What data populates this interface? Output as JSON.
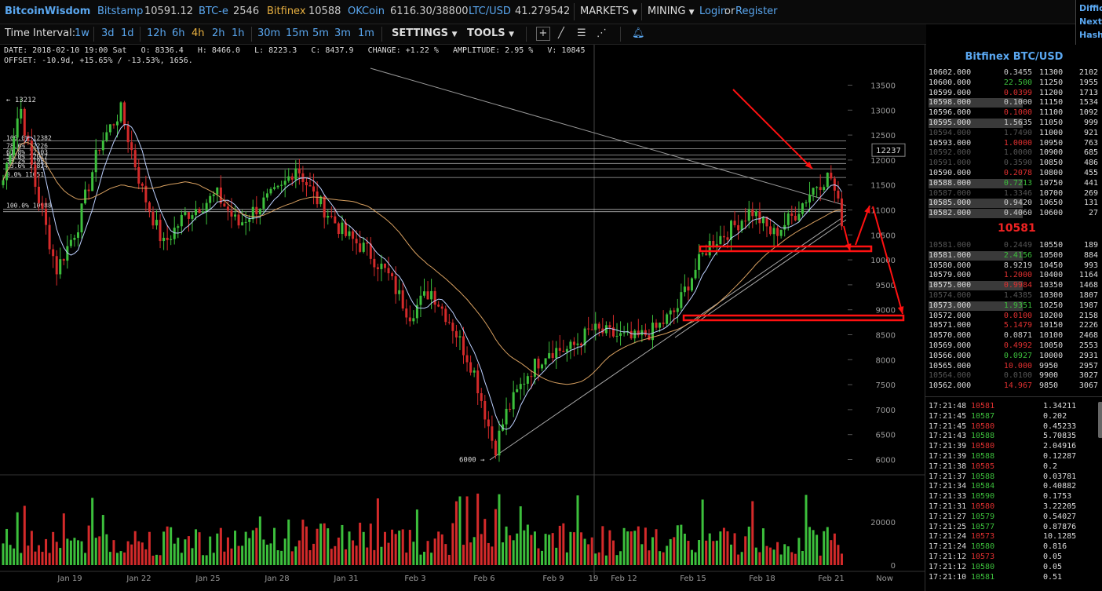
{
  "header": {
    "brand": "BitcoinWisdom",
    "exchanges": [
      {
        "name": "Bitstamp",
        "value": "10591.12",
        "active": false
      },
      {
        "name": "BTC-e",
        "value": "2546",
        "active": false
      },
      {
        "name": "Bitfinex",
        "value": "10588",
        "active": true
      },
      {
        "name": "OKCoin",
        "value": "6116.30/38800",
        "active": false
      },
      {
        "name": "LTC/USD",
        "value": "41.279542",
        "active": false
      }
    ],
    "markets_label": "MARKETS",
    "mining_label": "MINING",
    "login_label": "Login",
    "or_label": "or",
    "register_label": "Register",
    "side_labels": [
      "Diffic",
      "Next:",
      "Hash"
    ]
  },
  "toolbar": {
    "time_interval_label": "Time Interval:",
    "intervals": [
      "1w",
      "3d",
      "1d",
      "12h",
      "6h",
      "4h",
      "2h",
      "1h",
      "30m",
      "15m",
      "5m",
      "3m",
      "1m"
    ],
    "active_interval": "4h",
    "settings_label": "SETTINGS",
    "tools_label": "TOOLS"
  },
  "info": {
    "line1": "DATE: 2018-02-10 19:00 Sat   O: 8336.4   H: 8466.0   L: 8223.3   C: 8437.9   CHANGE: +1.22 %   AMPLITUDE: 2.95 %   V: 10845",
    "line2": "OFFSET: -10.9d, +15.65% / -13.53%, 1656."
  },
  "chart_data": {
    "type": "candlestick",
    "title": "",
    "interval": "4h",
    "y_ticks": [
      13500,
      13000,
      12500,
      12000,
      11500,
      11000,
      10500,
      10000,
      9500,
      9000,
      8500,
      8000,
      7500,
      7000,
      6500,
      6000
    ],
    "ylim": [
      5800,
      13900
    ],
    "x_ticks": [
      "Jan 19",
      "Jan 22",
      "Jan 25",
      "Jan 28",
      "Jan 31",
      "Feb 3",
      "Feb 6",
      "Feb 9",
      "19",
      "Feb 12",
      "Feb 15",
      "Feb 18",
      "Feb 21",
      "Now"
    ],
    "volume_ticks": [
      "20000",
      "0"
    ],
    "price_path": [
      {
        "d": 0,
        "p": 11600
      },
      {
        "d": 0.8,
        "p": 13100
      },
      {
        "d": 1.5,
        "p": 11500
      },
      {
        "d": 2.5,
        "p": 9800
      },
      {
        "d": 3.5,
        "p": 10700
      },
      {
        "d": 4.5,
        "p": 12300
      },
      {
        "d": 5.5,
        "p": 13000
      },
      {
        "d": 6.5,
        "p": 11400
      },
      {
        "d": 7.5,
        "p": 10300
      },
      {
        "d": 8.5,
        "p": 10900
      },
      {
        "d": 10,
        "p": 11300
      },
      {
        "d": 11,
        "p": 10700
      },
      {
        "d": 12,
        "p": 11100
      },
      {
        "d": 13,
        "p": 11400
      },
      {
        "d": 13.7,
        "p": 11900
      },
      {
        "d": 14.5,
        "p": 11300
      },
      {
        "d": 16,
        "p": 10500
      },
      {
        "d": 17,
        "p": 10200
      },
      {
        "d": 18,
        "p": 9700
      },
      {
        "d": 19,
        "p": 8900
      },
      {
        "d": 20,
        "p": 9400
      },
      {
        "d": 21,
        "p": 8700
      },
      {
        "d": 22,
        "p": 7800
      },
      {
        "d": 23,
        "p": 6200
      },
      {
        "d": 23.5,
        "p": 6900
      },
      {
        "d": 24.5,
        "p": 7700
      },
      {
        "d": 25.5,
        "p": 8200
      },
      {
        "d": 26.5,
        "p": 8200
      },
      {
        "d": 27.5,
        "p": 8600
      },
      {
        "d": 28.5,
        "p": 8500
      },
      {
        "d": 29.5,
        "p": 8400
      },
      {
        "d": 30.5,
        "p": 8600
      },
      {
        "d": 31.5,
        "p": 9000
      },
      {
        "d": 32,
        "p": 9500
      },
      {
        "d": 33,
        "p": 10300
      },
      {
        "d": 34,
        "p": 10600
      },
      {
        "d": 35,
        "p": 11000
      },
      {
        "d": 36,
        "p": 10500
      },
      {
        "d": 37,
        "p": 10900
      },
      {
        "d": 38,
        "p": 11500
      },
      {
        "d": 38.7,
        "p": 11700
      },
      {
        "d": 39.3,
        "p": 10700
      }
    ],
    "fib_upper": [
      {
        "label": "100.0% 12382",
        "price": 12382
      },
      {
        "label": "78.6% 12226",
        "price": 12226
      },
      {
        "label": "61.8% 12103",
        "price": 12103
      },
      {
        "label": "50.0% 12017",
        "price": 12017
      },
      {
        "label": "38.2% 11931",
        "price": 11931
      },
      {
        "label": "23.6% 11824",
        "price": 11824
      },
      {
        "label": "0.0% 11651",
        "price": 11651
      }
    ],
    "fib_lower": [
      {
        "label": "100.0% 10988",
        "price": 10988
      }
    ],
    "annotations": [
      {
        "label": "← 13212",
        "price": 13212
      },
      {
        "label": "6000 →",
        "price": 6000
      }
    ],
    "price_tag": "12237",
    "colors": {
      "up": "#3cbf3c",
      "down": "#d42a2a",
      "annotation": "#ff1111",
      "ma_fast": "#bcd0ff",
      "ma_slow": "#d8a060"
    }
  },
  "orderbook": {
    "title": "Bitfinex BTC/USD",
    "mid_price": "10581",
    "asks": [
      [
        "10602.000",
        "0.3455"
      ],
      [
        "10600.000",
        "22.500"
      ],
      [
        "10599.000",
        "0.0399"
      ],
      [
        "10598.000",
        "0.1000"
      ],
      [
        "10596.000",
        "0.1000"
      ],
      [
        "10595.000",
        "1.5635"
      ],
      [
        "10594.000",
        "1.7490"
      ],
      [
        "10593.000",
        "1.0000"
      ],
      [
        "10592.000",
        "1.0000"
      ],
      [
        "10591.000",
        "0.3590"
      ],
      [
        "10590.000",
        "0.2078"
      ],
      [
        "10588.000",
        "0.7213"
      ],
      [
        "10587.000",
        "1.3346"
      ],
      [
        "10585.000",
        "0.9420"
      ],
      [
        "10582.000",
        "0.4060"
      ]
    ],
    "bids": [
      [
        "10581.000",
        "0.2449"
      ],
      [
        "10581.000",
        "2.4156"
      ],
      [
        "10580.000",
        "8.9219"
      ],
      [
        "10579.000",
        "1.2000"
      ],
      [
        "10575.000",
        "0.9984"
      ],
      [
        "10574.000",
        "1.4385"
      ],
      [
        "10573.000",
        "1.9351"
      ],
      [
        "10572.000",
        "0.0100"
      ],
      [
        "10571.000",
        "5.1479"
      ],
      [
        "10570.000",
        "0.0871"
      ],
      [
        "10569.000",
        "0.4992"
      ],
      [
        "10566.000",
        "0.0927"
      ],
      [
        "10565.000",
        "10.000"
      ],
      [
        "10564.000",
        "0.0100"
      ],
      [
        "10562.000",
        "14.967"
      ]
    ],
    "depth_asks": [
      [
        "11300",
        "2102"
      ],
      [
        "11250",
        "1955"
      ],
      [
        "11200",
        "1713"
      ],
      [
        "11150",
        "1534"
      ],
      [
        "11100",
        "1092"
      ],
      [
        "11050",
        "999"
      ],
      [
        "11000",
        "921"
      ],
      [
        "10950",
        "763"
      ],
      [
        "10900",
        "685"
      ],
      [
        "10850",
        "486"
      ],
      [
        "10800",
        "455"
      ],
      [
        "10750",
        "441"
      ],
      [
        "10700",
        "269"
      ],
      [
        "10650",
        "131"
      ],
      [
        "10600",
        "27"
      ]
    ],
    "depth_bids": [
      [
        "10550",
        "189"
      ],
      [
        "10500",
        "884"
      ],
      [
        "10450",
        "993"
      ],
      [
        "10400",
        "1164"
      ],
      [
        "10350",
        "1468"
      ],
      [
        "10300",
        "1807"
      ],
      [
        "10250",
        "1987"
      ],
      [
        "10200",
        "2158"
      ],
      [
        "10150",
        "2226"
      ],
      [
        "10100",
        "2468"
      ],
      [
        "10050",
        "2553"
      ],
      [
        "10000",
        "2931"
      ],
      [
        "9950",
        "2957"
      ],
      [
        "9900",
        "3027"
      ],
      [
        "9850",
        "3067"
      ]
    ]
  },
  "trades": [
    [
      "17:21:48",
      "10581",
      "1.34211",
      "down"
    ],
    [
      "17:21:45",
      "10587",
      "0.202",
      "up"
    ],
    [
      "17:21:45",
      "10580",
      "0.45233",
      "down"
    ],
    [
      "17:21:43",
      "10588",
      "5.70835",
      "up"
    ],
    [
      "17:21:39",
      "10580",
      "2.04916",
      "down"
    ],
    [
      "17:21:39",
      "10588",
      "0.12287",
      "up"
    ],
    [
      "17:21:38",
      "10585",
      "0.2",
      "down"
    ],
    [
      "17:21:37",
      "10588",
      "0.03781",
      "up"
    ],
    [
      "17:21:34",
      "10584",
      "0.40882",
      "up"
    ],
    [
      "17:21:33",
      "10590",
      "0.1753",
      "up"
    ],
    [
      "17:21:31",
      "10580",
      "3.22205",
      "down"
    ],
    [
      "17:21:27",
      "10579",
      "0.54027",
      "up"
    ],
    [
      "17:21:25",
      "10577",
      "0.87876",
      "up"
    ],
    [
      "17:21:24",
      "10573",
      "10.1285",
      "down"
    ],
    [
      "17:21:24",
      "10580",
      "0.816",
      "up"
    ],
    [
      "17:21:12",
      "10573",
      "0.05",
      "down"
    ],
    [
      "17:21:12",
      "10580",
      "0.05",
      "up"
    ],
    [
      "17:21:10",
      "10581",
      "0.51",
      "up"
    ]
  ]
}
